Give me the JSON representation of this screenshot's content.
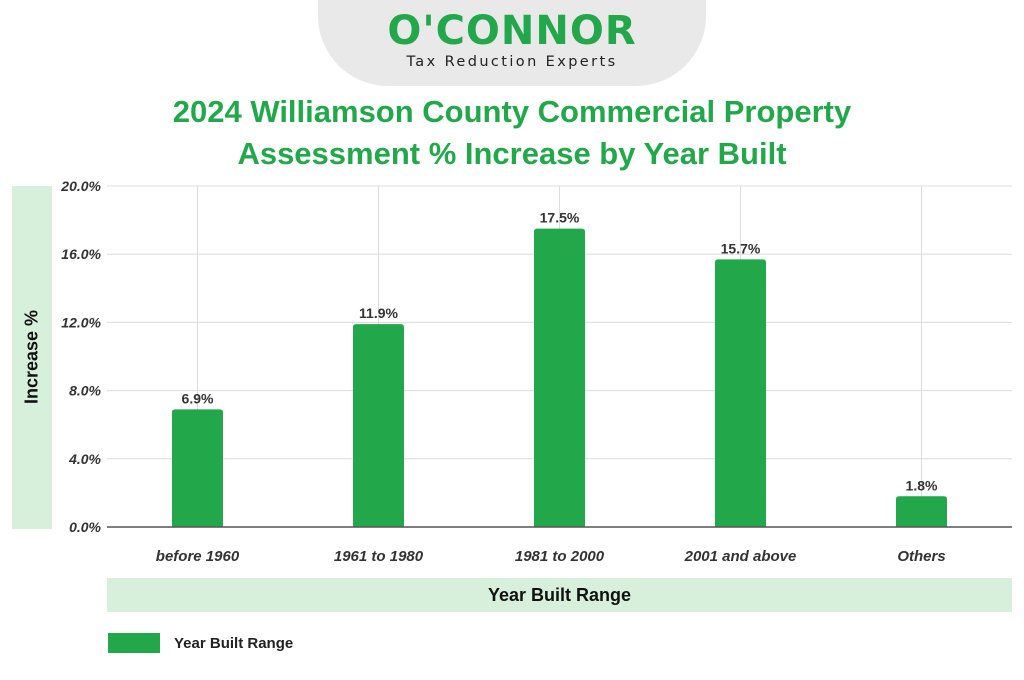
{
  "brand": {
    "name": "O'CONNOR",
    "tagline": "Tax Reduction Experts"
  },
  "chart_data": {
    "type": "bar",
    "title_line1": "2024 Williamson County Commercial Property",
    "title_line2": "Assessment % Increase by Year Built",
    "xlabel": "Year Built Range",
    "ylabel": "Increase %",
    "categories": [
      "before 1960",
      "1961 to 1980",
      "1981 to 2000",
      "2001 and above",
      "Others"
    ],
    "series": [
      {
        "name": "Year Built Range",
        "values": [
          6.9,
          11.9,
          17.5,
          15.7,
          1.8
        ]
      }
    ],
    "data_labels": [
      "6.9%",
      "11.9%",
      "17.5%",
      "15.7%",
      "1.8%"
    ],
    "ylim": [
      0,
      20
    ],
    "yticks": [
      0,
      4,
      8,
      12,
      16,
      20
    ],
    "ytick_labels": [
      "0.0%",
      "4.0%",
      "8.0%",
      "12.0%",
      "16.0%",
      "20.0%"
    ],
    "grid": true,
    "legend_position": "bottom-left",
    "bar_color": "#22a84a"
  }
}
